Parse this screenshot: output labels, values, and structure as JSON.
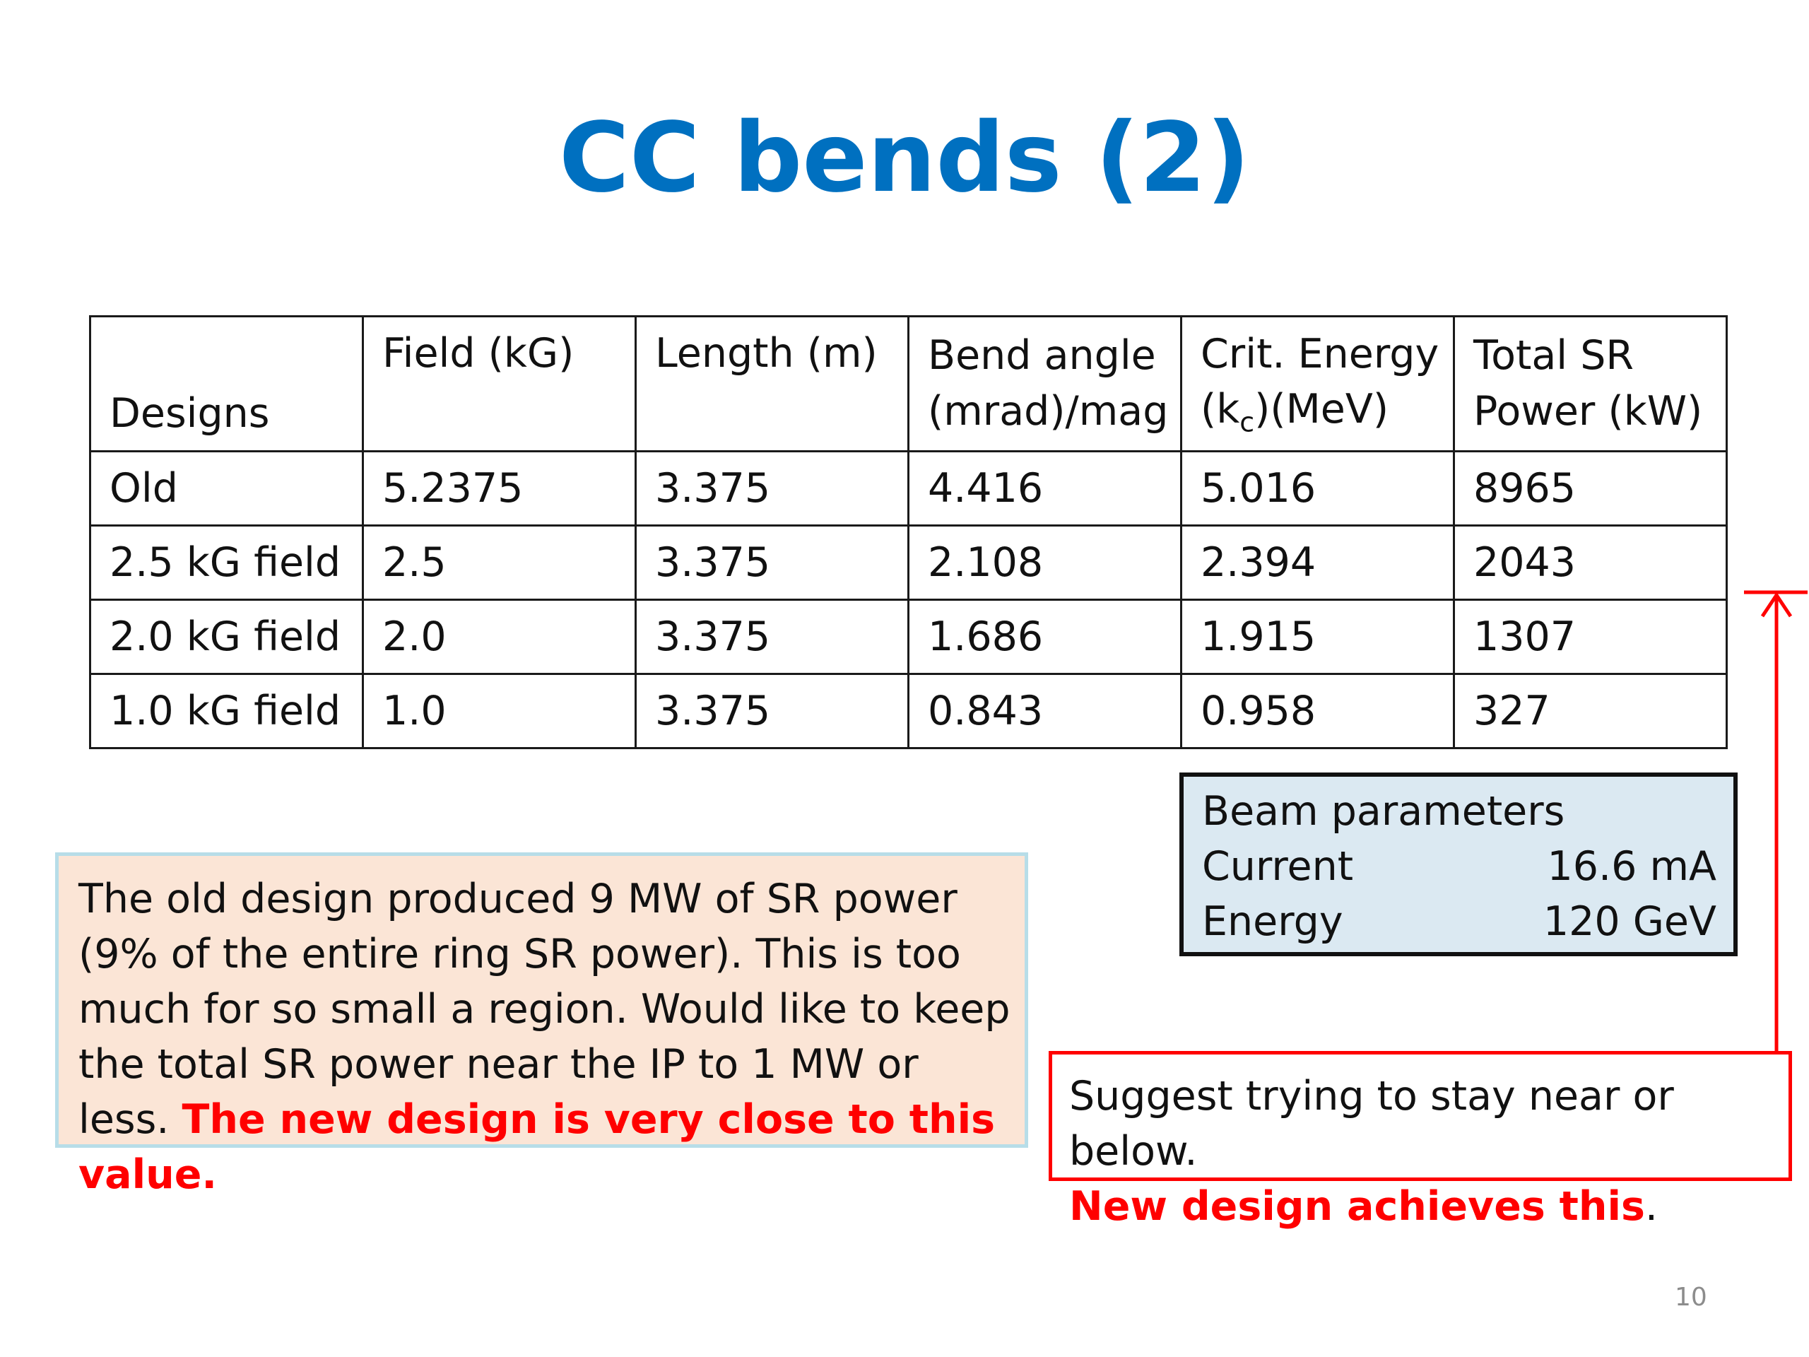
{
  "title": "CC bends (2)",
  "table": {
    "headers": [
      "Designs",
      "Field (kG)",
      "Length (m)",
      "Bend angle",
      "(mrad)/mag",
      "Crit. Energy",
      "(k",
      "c",
      ")(MeV)",
      "Total SR",
      "Power (kW)"
    ],
    "rows": [
      [
        "Old",
        "5.2375",
        "3.375",
        "4.416",
        "5.016",
        "8965"
      ],
      [
        "2.5 kG field",
        "2.5",
        "3.375",
        "2.108",
        "2.394",
        "2043"
      ],
      [
        "2.0 kG field",
        "2.0",
        "3.375",
        "1.686",
        "1.915",
        "1307"
      ],
      [
        "1.0 kG field",
        "1.0",
        "3.375",
        "0.843",
        "0.958",
        "327"
      ]
    ]
  },
  "beam": {
    "heading": "Beam parameters",
    "current_label": "Current",
    "current_value": "16.6 mA",
    "energy_label": "Energy",
    "energy_value": "120 GeV"
  },
  "note": {
    "text": "The old design produced 9 MW of SR power  (9% of the entire ring SR power). This is too much for so small a region. Would like to keep the total SR power near the IP to 1 MW or less. ",
    "highlight": "The new design is very close to this value."
  },
  "suggest": {
    "text": "Suggest trying to stay near or below.",
    "highlight": "New design achieves this",
    "trailing": "."
  },
  "page_number": "10",
  "colors": {
    "title": "#0070c0",
    "highlight": "#ff0000",
    "note_bg": "#fbe5d6",
    "note_border": "#b7dde8",
    "beam_bg": "#dbe9f2"
  }
}
